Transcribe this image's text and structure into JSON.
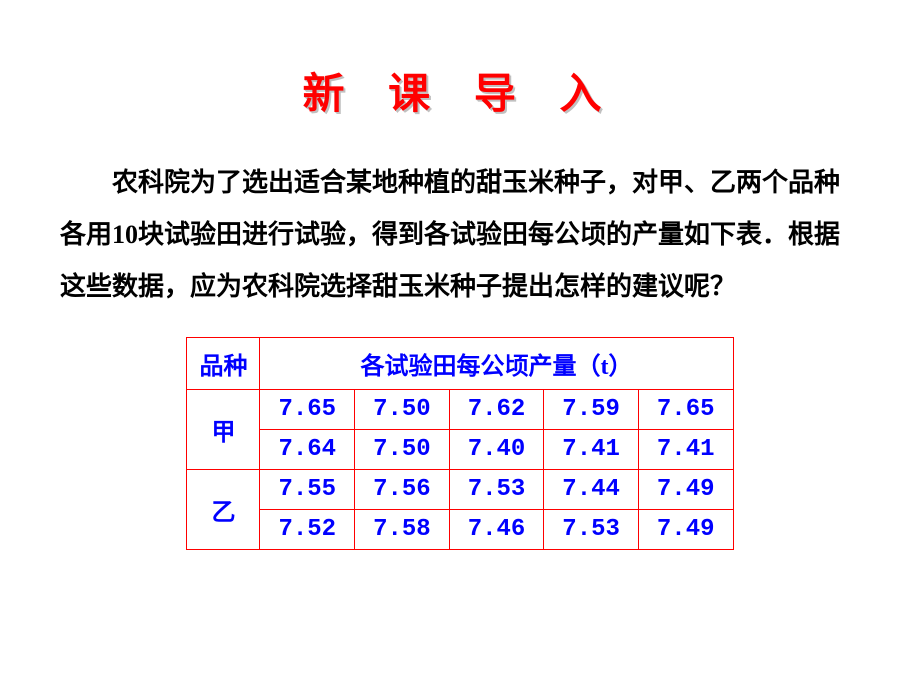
{
  "title": "新 课 导 入",
  "intro": "农科院为了选出适合某地种植的甜玉米种子，对甲、乙两个品种各用10块试验田进行试验，得到各试验田每公顷的产量如下表．根据这些数据，应为农科院选择甜玉米种子提出怎样的建议呢？",
  "table": {
    "header_col1": "品种",
    "header_col2": "各试验田每公顷产量（t）",
    "rows": [
      {
        "label": "甲",
        "r1": [
          "7.65",
          "7.50",
          "7.62",
          "7.59",
          "7.65"
        ],
        "r2": [
          "7.64",
          "7.50",
          "7.40",
          "7.41",
          "7.41"
        ]
      },
      {
        "label": "乙",
        "r1": [
          "7.55",
          "7.56",
          "7.53",
          "7.44",
          "7.49"
        ],
        "r2": [
          "7.52",
          "7.58",
          "7.46",
          "7.53",
          "7.49"
        ]
      }
    ],
    "border_color": "#ff0000",
    "text_color": "#0000ff",
    "background_color": "#ffffff"
  },
  "title_color": "#ff0000"
}
